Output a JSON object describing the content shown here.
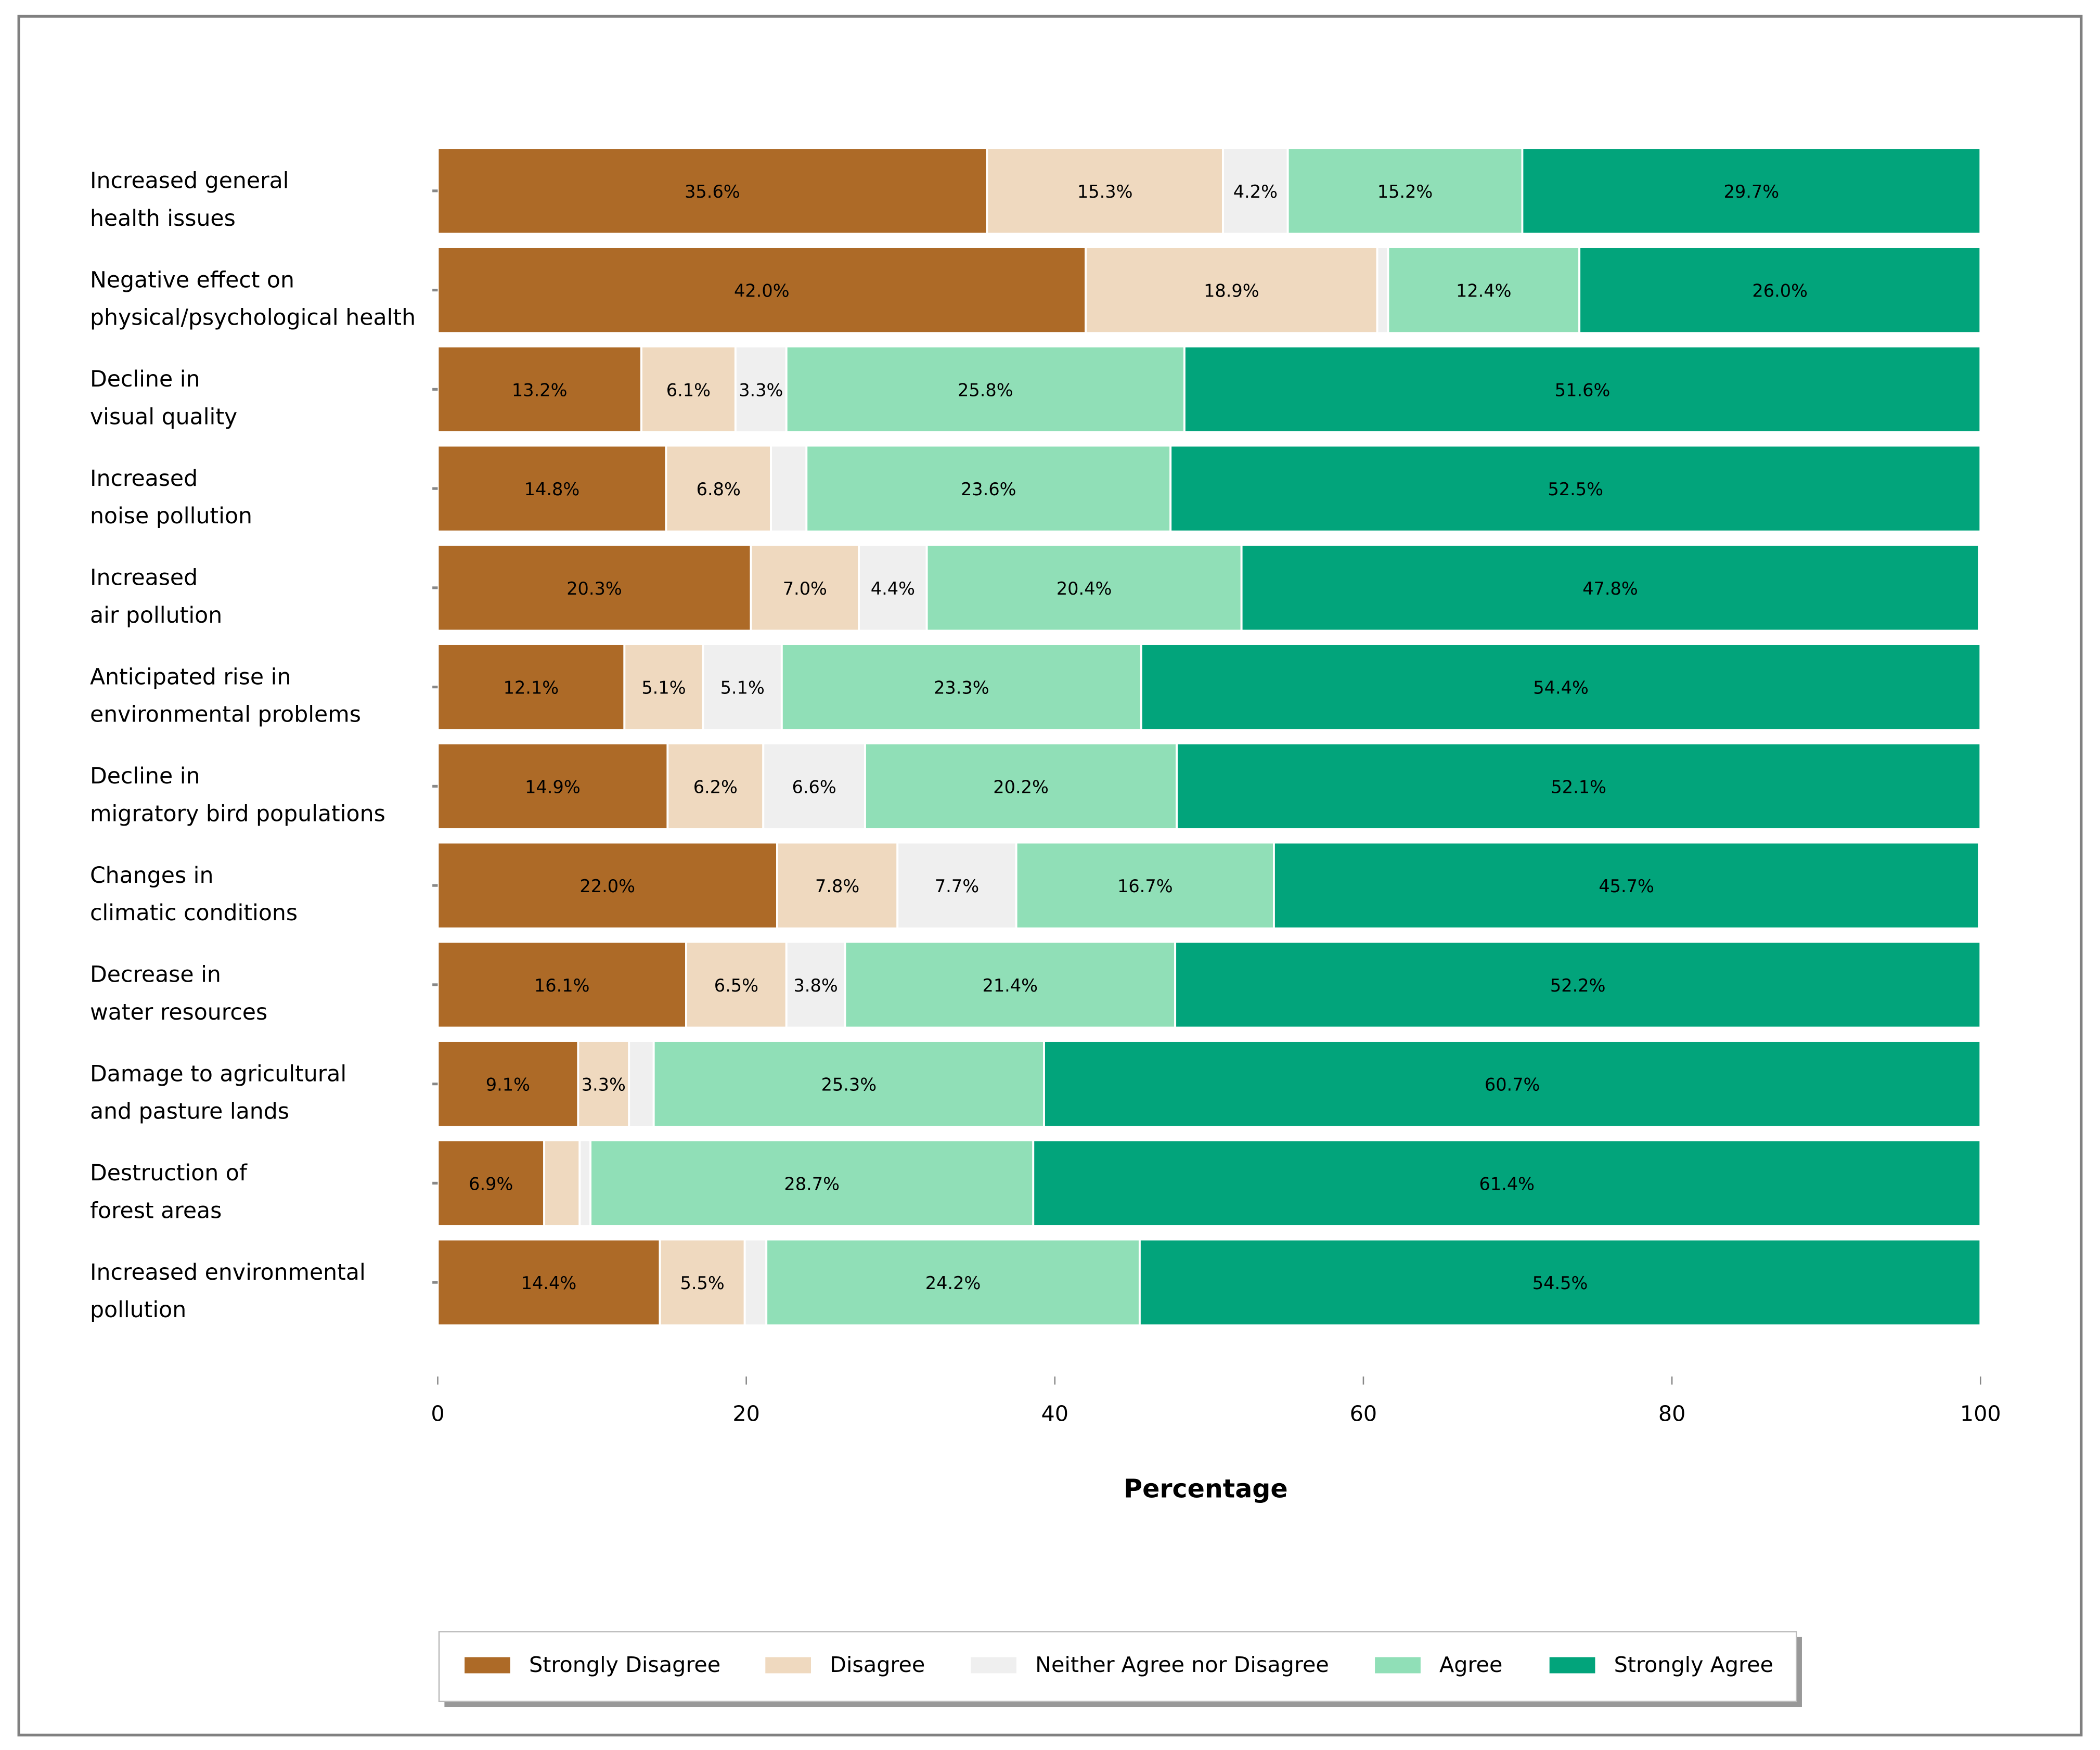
{
  "chart_data": {
    "type": "bar",
    "orientation": "horizontal-stacked",
    "title": "",
    "xlabel": "Percentage",
    "ylabel": "",
    "xlim": [
      0,
      100
    ],
    "xticks": [
      "0",
      "20",
      "40",
      "60",
      "80",
      "100"
    ],
    "grid": false,
    "legend_position": "bottom",
    "categories": [
      [
        "Increased general",
        "health issues"
      ],
      [
        "Negative effect on",
        "physical/psychological health"
      ],
      [
        "Decline in",
        "visual quality"
      ],
      [
        "Increased",
        "noise pollution"
      ],
      [
        "Increased",
        "air pollution"
      ],
      [
        "Anticipated rise in",
        "environmental problems"
      ],
      [
        "Decline in",
        "migratory bird populations"
      ],
      [
        "Changes in",
        "climatic conditions"
      ],
      [
        "Decrease in",
        "water resources"
      ],
      [
        "Damage to agricultural",
        "and pasture lands"
      ],
      [
        "Destruction of",
        "forest areas"
      ],
      [
        "Increased environmental",
        "pollution"
      ]
    ],
    "series": [
      {
        "name": "Strongly Disagree",
        "color": "#ad6a27",
        "values": [
          35.6,
          42.0,
          13.2,
          14.8,
          20.3,
          12.1,
          14.9,
          22.0,
          16.1,
          9.1,
          6.9,
          14.4
        ]
      },
      {
        "name": "Disagree",
        "color": "#efd9bf",
        "values": [
          15.3,
          18.9,
          6.1,
          6.8,
          7.0,
          5.1,
          6.2,
          7.8,
          6.5,
          3.3,
          2.3,
          5.5
        ]
      },
      {
        "name": "Neither Agree nor Disagree",
        "color": "#efefef",
        "values": [
          4.2,
          0.7,
          3.3,
          2.3,
          4.4,
          5.1,
          6.6,
          7.7,
          3.8,
          1.6,
          0.7,
          1.4
        ]
      },
      {
        "name": "Agree",
        "color": "#90dfb7",
        "values": [
          15.2,
          12.4,
          25.8,
          23.6,
          20.4,
          23.3,
          20.2,
          16.7,
          21.4,
          25.3,
          28.7,
          24.2
        ]
      },
      {
        "name": "Strongly Agree",
        "color": "#02a47b",
        "values": [
          29.7,
          26.0,
          51.6,
          52.5,
          47.8,
          54.4,
          52.1,
          45.7,
          52.2,
          60.7,
          61.4,
          54.5
        ]
      }
    ],
    "label_min_value": 3
  }
}
